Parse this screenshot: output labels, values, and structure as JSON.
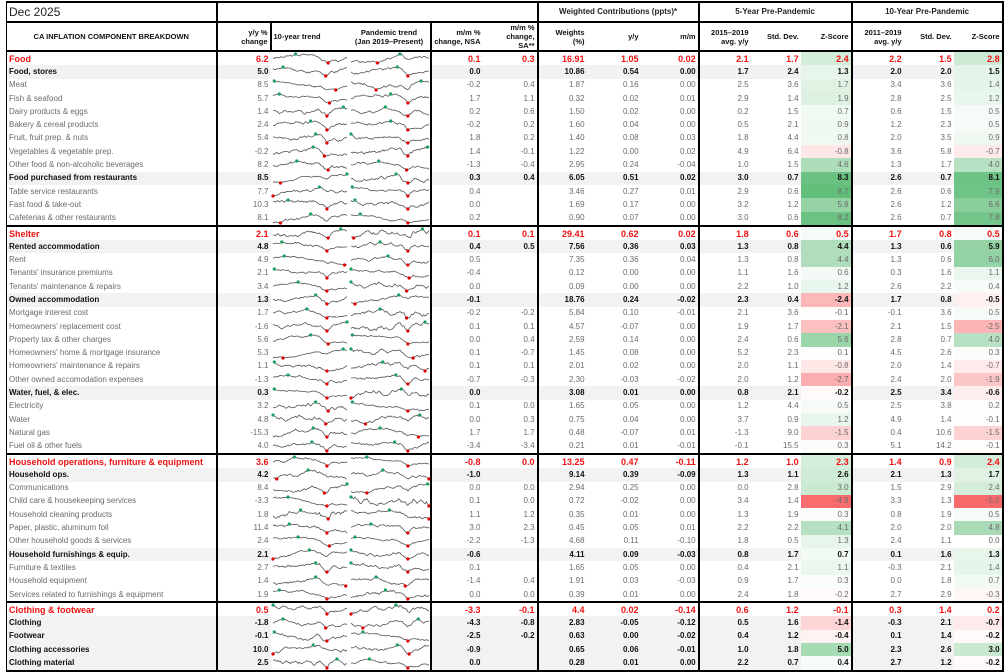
{
  "title": "Dec 2025",
  "groups": {
    "weighted": "Weighted Contributions (ppts)*",
    "five_year": "5-Year Pre-Pandemic",
    "ten_year": "10-Year Pre-Pandemic"
  },
  "columns": [
    "CA INFLATION COMPONENT BREAKDOWN",
    "y/y %\nchange",
    "10-year trend",
    "Pandemic trend\n(Jan 2019–Present)",
    "m/m %\nchange, NSA",
    "m/m %\nchange,\nSA**",
    "Weights\n(%)",
    "y/y",
    "m/m",
    "2015–2019\navg. y/y",
    "Std. Dev.",
    "Z-Score",
    "2011–2019\navg. y/y",
    "Std. Dev.",
    "Z-Score"
  ],
  "colors": {
    "category": "#ee1111",
    "z_positive": "#63be7b",
    "z_negative": "#f8696b",
    "spark_high": "#1a9e5f",
    "spark_low": "#e00000"
  },
  "rows": [
    {
      "label": "Food",
      "type": "cat",
      "v": [
        "6.2",
        "0.1",
        "0.3",
        "16.91",
        "1.05",
        "0.02",
        "2.1",
        "1.7",
        "2.4",
        "2.2",
        "1.5",
        "2.8"
      ]
    },
    {
      "label": "Food, stores",
      "type": "sub",
      "v": [
        "5.0",
        "0.0",
        "",
        "10.86",
        "0.54",
        "0.00",
        "1.7",
        "2.4",
        "1.3",
        "2.0",
        "2.0",
        "1.5"
      ]
    },
    {
      "label": "Meat",
      "type": "item",
      "v": [
        "8.5",
        "-0.2",
        "0.4",
        "1.87",
        "0.16",
        "0.00",
        "2.5",
        "3.6",
        "1.7",
        "3.4",
        "3.6",
        "1.4"
      ]
    },
    {
      "label": "Fish & seafood",
      "type": "item",
      "v": [
        "5.7",
        "1.7",
        "1.1",
        "0.32",
        "0.02",
        "0.01",
        "2.9",
        "1.4",
        "1.9",
        "2.8",
        "2.5",
        "1.2"
      ]
    },
    {
      "label": "Dairy products & eggs",
      "type": "item",
      "v": [
        "1.4",
        "0.2",
        "0.6",
        "1.50",
        "0.02",
        "0.00",
        "0.2",
        "1.5",
        "0.7",
        "0.6",
        "1.5",
        "0.5"
      ]
    },
    {
      "label": "Bakery & cereal products",
      "type": "item",
      "v": [
        "2.4",
        "-0.2",
        "0.2",
        "1.60",
        "0.04",
        "0.00",
        "0.5",
        "2.1",
        "0.9",
        "1.2",
        "2.3",
        "0.5"
      ]
    },
    {
      "label": "Fruit, fruit prep. & nuts",
      "type": "item",
      "v": [
        "5.4",
        "1.8",
        "0.2",
        "1.40",
        "0.08",
        "0.03",
        "1.8",
        "4.4",
        "0.8",
        "2.0",
        "3.5",
        "0.9"
      ]
    },
    {
      "label": "Vegetables & vegetable prep.",
      "type": "item",
      "v": [
        "-0.2",
        "1.4",
        "-0.1",
        "1.22",
        "0.00",
        "0.02",
        "4.9",
        "6.4",
        "-0.8",
        "3.6",
        "5.8",
        "-0.7"
      ]
    },
    {
      "label": "Other food & non-alcoholic beverages",
      "type": "item",
      "v": [
        "8.2",
        "-1.3",
        "-0.4",
        "2.95",
        "0.24",
        "-0.04",
        "1.0",
        "1.5",
        "4.6",
        "1.3",
        "1.7",
        "4.0"
      ]
    },
    {
      "label": "Food purchased from restaurants",
      "type": "sub",
      "v": [
        "8.5",
        "0.3",
        "0.4",
        "6.05",
        "0.51",
        "0.02",
        "3.0",
        "0.7",
        "8.3",
        "2.6",
        "0.7",
        "8.1"
      ]
    },
    {
      "label": "Table service restaurants",
      "type": "item",
      "v": [
        "7.7",
        "0.4",
        "",
        "3.46",
        "0.27",
        "0.01",
        "2.9",
        "0.6",
        "8.7",
        "2.6",
        "0.6",
        "7.9"
      ]
    },
    {
      "label": "Fast food & take-out",
      "type": "item",
      "v": [
        "10.3",
        "0.0",
        "",
        "1.69",
        "0.17",
        "0.00",
        "3.2",
        "1.2",
        "5.9",
        "2.6",
        "1.2",
        "6.6"
      ]
    },
    {
      "label": "Cafeterias & other restaurants",
      "type": "item",
      "v": [
        "8.1",
        "0.2",
        "",
        "0.90",
        "0.07",
        "0.00",
        "3.0",
        "0.6",
        "8.2",
        "2.6",
        "0.7",
        "7.8"
      ]
    },
    {
      "label": "Shelter",
      "type": "cat",
      "v": [
        "2.1",
        "0.1",
        "0.1",
        "29.41",
        "0.62",
        "0.02",
        "1.8",
        "0.6",
        "0.5",
        "1.7",
        "0.8",
        "0.5"
      ]
    },
    {
      "label": "Rented accommodation",
      "type": "sub",
      "v": [
        "4.8",
        "0.4",
        "0.5",
        "7.56",
        "0.36",
        "0.03",
        "1.3",
        "0.8",
        "4.4",
        "1.3",
        "0.6",
        "5.9"
      ]
    },
    {
      "label": "Rent",
      "type": "item",
      "v": [
        "4.9",
        "0.5",
        "",
        "7.35",
        "0.36",
        "0.04",
        "1.3",
        "0.8",
        "4.4",
        "1.3",
        "0.6",
        "6.0"
      ]
    },
    {
      "label": "Tenants' insurance premiums",
      "type": "item",
      "v": [
        "2.1",
        "-0.4",
        "",
        "0.12",
        "0.00",
        "0.00",
        "1.1",
        "1.6",
        "0.6",
        "0.3",
        "1.6",
        "1.1"
      ]
    },
    {
      "label": "Tenants' maintenance & repairs",
      "type": "item",
      "v": [
        "3.4",
        "0.0",
        "",
        "0.09",
        "0.00",
        "0.00",
        "2.2",
        "1.0",
        "1.2",
        "2.6",
        "2.2",
        "0.4"
      ]
    },
    {
      "label": "Owned accommodation",
      "type": "sub",
      "v": [
        "1.3",
        "-0.1",
        "",
        "18.76",
        "0.24",
        "-0.02",
        "2.3",
        "0.4",
        "-2.4",
        "1.7",
        "0.8",
        "-0.5"
      ]
    },
    {
      "label": "Mortgage interest cost",
      "type": "item",
      "v": [
        "1.7",
        "-0.2",
        "-0.2",
        "5.84",
        "0.10",
        "-0.01",
        "2.1",
        "3.6",
        "-0.1",
        "-0.1",
        "3.6",
        "0.5"
      ]
    },
    {
      "label": "Homeowners' replacement cost",
      "type": "item",
      "v": [
        "-1.6",
        "0.1",
        "0.1",
        "4.57",
        "-0.07",
        "0.00",
        "1.9",
        "1.7",
        "-2.1",
        "2.1",
        "1.5",
        "-2.5"
      ]
    },
    {
      "label": "Property tax & other charges",
      "type": "item",
      "v": [
        "5.6",
        "0.0",
        "0.4",
        "2.59",
        "0.14",
        "0.00",
        "2.4",
        "0.6",
        "5.6",
        "2.8",
        "0.7",
        "4.0"
      ]
    },
    {
      "label": "Homeowners' home & mortgage insurance",
      "type": "item",
      "v": [
        "5.3",
        "0.1",
        "-0.7",
        "1.45",
        "0.08",
        "0.00",
        "5.2",
        "2.3",
        "0.1",
        "4.5",
        "2.6",
        "0.3"
      ]
    },
    {
      "label": "Homeowners' maintenance & repairs",
      "type": "item",
      "v": [
        "1.1",
        "0.1",
        "0.1",
        "2.01",
        "0.02",
        "0.00",
        "2.0",
        "1.1",
        "-0.8",
        "2.0",
        "1.4",
        "-0.7"
      ]
    },
    {
      "label": "Other owned accomodation expenses",
      "type": "item",
      "v": [
        "-1.3",
        "-0.7",
        "-0.3",
        "2.30",
        "-0.03",
        "-0.02",
        "2.0",
        "1.2",
        "-2.7",
        "2.4",
        "2.0",
        "-1.9"
      ]
    },
    {
      "label": "Water, fuel, & elec.",
      "type": "sub",
      "v": [
        "0.3",
        "0.0",
        "",
        "3.08",
        "0.01",
        "0.00",
        "0.8",
        "2.1",
        "-0.2",
        "2.5",
        "3.4",
        "-0.6"
      ]
    },
    {
      "label": "Electricity",
      "type": "item",
      "v": [
        "3.2",
        "0.1",
        "0.0",
        "1.65",
        "0.05",
        "0.00",
        "1.2",
        "4.4",
        "0.5",
        "2.5",
        "3.8",
        "0.2"
      ]
    },
    {
      "label": "Water",
      "type": "item",
      "v": [
        "4.8",
        "0.0",
        "0.3",
        "0.75",
        "0.04",
        "0.00",
        "3.7",
        "0.9",
        "1.2",
        "4.9",
        "1.4",
        "-0.1"
      ]
    },
    {
      "label": "Natural gas",
      "type": "item",
      "v": [
        "-15.3",
        "1.7",
        "1.7",
        "0.48",
        "-0.07",
        "0.01",
        "-1.3",
        "9.0",
        "-1.5",
        "0.4",
        "10.6",
        "-1.5"
      ]
    },
    {
      "label": "Fuel oil & other fuels",
      "type": "item",
      "v": [
        "4.0",
        "-3.4",
        "-3.4",
        "0.21",
        "0.01",
        "-0.01",
        "-0.1",
        "15.5",
        "0.3",
        "5.1",
        "14.2",
        "-0.1"
      ]
    },
    {
      "label": "Household operations, furniture & equipment",
      "type": "cat",
      "v": [
        "3.6",
        "-0.8",
        "0.0",
        "13.25",
        "0.47",
        "-0.11",
        "1.2",
        "1.0",
        "2.3",
        "1.4",
        "0.9",
        "2.4"
      ]
    },
    {
      "label": "Household ops.",
      "type": "sub",
      "v": [
        "4.2",
        "-1.0",
        "",
        "9.14",
        "0.39",
        "-0.09",
        "1.3",
        "1.1",
        "2.6",
        "2.1",
        "1.3",
        "1.7"
      ]
    },
    {
      "label": "Communications",
      "type": "item",
      "v": [
        "8.4",
        "0.0",
        "0.0",
        "2.94",
        "0.25",
        "0.00",
        "0.0",
        "2.8",
        "3.0",
        "1.5",
        "2.9",
        "2.4"
      ]
    },
    {
      "label": "Child care & housekeeping services",
      "type": "item",
      "v": [
        "-3.3",
        "0.1",
        "0.0",
        "0.72",
        "-0.02",
        "0.00",
        "3.4",
        "1.4",
        "-4.9",
        "3.3",
        "1.3",
        "-5.0"
      ]
    },
    {
      "label": "Household cleaning products",
      "type": "item",
      "v": [
        "1.8",
        "1.1",
        "1.2",
        "0.35",
        "0.01",
        "0.00",
        "1.3",
        "1.9",
        "0.3",
        "0.8",
        "1.9",
        "0.5"
      ]
    },
    {
      "label": "Paper, plastic, aluminum foil",
      "type": "item",
      "v": [
        "11.4",
        "3.0",
        "2.3",
        "0.45",
        "0.05",
        "0.01",
        "2.2",
        "2.2",
        "4.1",
        "2.0",
        "2.0",
        "4.8"
      ]
    },
    {
      "label": "Other household goods & services",
      "type": "item",
      "v": [
        "2.4",
        "-2.2",
        "-1.3",
        "4.68",
        "0.11",
        "-0.10",
        "1.8",
        "0.5",
        "1.3",
        "2.4",
        "1.1",
        "0.0"
      ]
    },
    {
      "label": "Household furnishings & equip.",
      "type": "sub",
      "v": [
        "2.1",
        "-0.6",
        "",
        "4.11",
        "0.09",
        "-0.03",
        "0.8",
        "1.7",
        "0.7",
        "0.1",
        "1.6",
        "1.3"
      ]
    },
    {
      "label": "Furniture & textiles",
      "type": "item",
      "v": [
        "2.7",
        "0.1",
        "",
        "1.65",
        "0.05",
        "0.00",
        "0.4",
        "2.1",
        "1.1",
        "-0.3",
        "2.1",
        "1.4"
      ]
    },
    {
      "label": "Household equipment",
      "type": "item",
      "v": [
        "1.4",
        "-1.4",
        "0.4",
        "1.91",
        "0.03",
        "-0.03",
        "0.9",
        "1.7",
        "0.3",
        "0.0",
        "1.8",
        "0.7"
      ]
    },
    {
      "label": "Services related to furnishings & equipment",
      "type": "item",
      "v": [
        "1.9",
        "0.0",
        "0.0",
        "0.39",
        "0.01",
        "0.00",
        "2.4",
        "1.8",
        "-0.2",
        "2.7",
        "2.9",
        "-0.3"
      ]
    },
    {
      "label": "Clothing & footwear",
      "type": "cat",
      "v": [
        "0.5",
        "-3.3",
        "-0.1",
        "4.4",
        "0.02",
        "-0.14",
        "0.6",
        "1.2",
        "-0.1",
        "0.3",
        "1.4",
        "0.2"
      ]
    },
    {
      "label": "Clothing",
      "type": "sub",
      "v": [
        "-1.8",
        "-4.3",
        "-0.8",
        "2.83",
        "-0.05",
        "-0.12",
        "0.5",
        "1.6",
        "-1.4",
        "-0.3",
        "2.1",
        "-0.7"
      ]
    },
    {
      "label": "Footwear",
      "type": "sub",
      "v": [
        "-0.1",
        "-2.5",
        "-0.2",
        "0.63",
        "0.00",
        "-0.02",
        "0.4",
        "1.2",
        "-0.4",
        "0.1",
        "1.4",
        "-0.2"
      ]
    },
    {
      "label": "Clothing accessories",
      "type": "sub",
      "v": [
        "10.0",
        "-0.9",
        "",
        "0.65",
        "0.06",
        "-0.01",
        "1.0",
        "1.8",
        "5.0",
        "2.3",
        "2.6",
        "3.0"
      ]
    },
    {
      "label": "Clothing material",
      "type": "sub",
      "v": [
        "2.5",
        "0.0",
        "",
        "0.28",
        "0.01",
        "0.00",
        "2.2",
        "0.7",
        "0.4",
        "2.7",
        "1.2",
        "-0.2"
      ]
    }
  ]
}
